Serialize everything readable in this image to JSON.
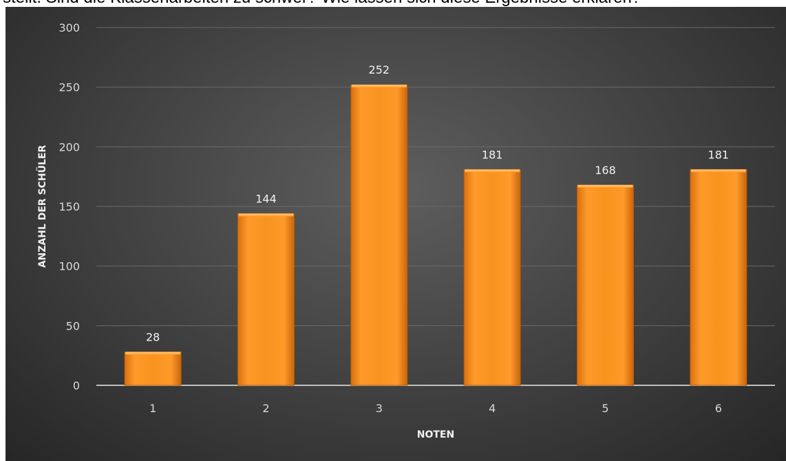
{
  "top_strip_text": "stellt. Sind die Klassenarbeiten zu schwer? Wie lassen sich diese Ergebnisse erklären?",
  "chart_data": {
    "type": "bar",
    "title": "",
    "xlabel": "NOTEN",
    "ylabel": "ANZAHL DER SCHÜLER",
    "categories": [
      "1",
      "2",
      "3",
      "4",
      "5",
      "6"
    ],
    "values": [
      28,
      144,
      252,
      181,
      168,
      181
    ],
    "ylim": [
      0,
      300
    ],
    "yticks": [
      0,
      50,
      100,
      150,
      200,
      250,
      300
    ],
    "grid": true,
    "legend": "none",
    "bar_color": "#f7931e",
    "background_color": "#3f3f3f"
  }
}
